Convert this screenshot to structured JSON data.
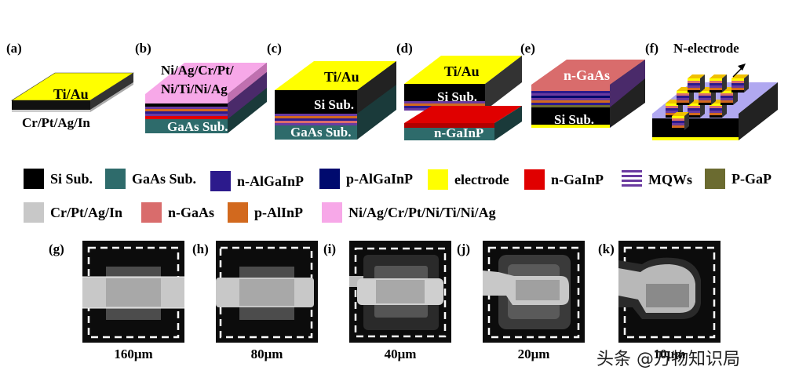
{
  "panels": {
    "a": {
      "label": "(a)",
      "top_text": "Ti/Au",
      "bottom_text": "Cr/Pt/Ag/In"
    },
    "b": {
      "label": "(b)",
      "top_line1": "Ni/Ag/Cr/Pt/",
      "top_line2": "Ni/Ti/Ni/Ag",
      "bottom_text": "GaAs Sub."
    },
    "c": {
      "label": "(c)",
      "top_text": "Ti/Au",
      "mid_text": "Si Sub.",
      "bottom_text": "GaAs Sub."
    },
    "d": {
      "label": "(d)",
      "top_text": "Ti/Au",
      "mid_text": "Si Sub.",
      "bottom_text": "n-GaInP"
    },
    "e": {
      "label": "(e)",
      "top_text": "n-GaAs",
      "bottom_text": "Si Sub."
    },
    "f": {
      "label": "(f)",
      "callout": "N-electrode"
    }
  },
  "legend": [
    {
      "label": "Si Sub.",
      "color": "#000000"
    },
    {
      "label": "GaAs Sub.",
      "color": "#2e6b6b"
    },
    {
      "label": "n-AlGaInP",
      "color": "#2c1a8c"
    },
    {
      "label": "p-AlGaInP",
      "color": "#000a6e"
    },
    {
      "label": "electrode",
      "color": "#ffff00"
    },
    {
      "label": "n-GaInP",
      "color": "#e00000"
    },
    {
      "label": "MQWs",
      "color": "#6a3aa0"
    },
    {
      "label": "P-GaP",
      "color": "#6b6b30"
    },
    {
      "label": "Cr/Pt/Ag/In",
      "color": "#c8c8c8"
    },
    {
      "label": "n-GaAs",
      "color": "#d96c6c"
    },
    {
      "label": "p-AlInP",
      "color": "#d2691e"
    },
    {
      "label": "Ni/Ag/Cr/Pt/Ni/Ti/Ni/Ag",
      "color": "#f7a8e8"
    }
  ],
  "sem": [
    {
      "label": "(g)",
      "caption": "160μm"
    },
    {
      "label": "(h)",
      "caption": "80μm"
    },
    {
      "label": "(i)",
      "caption": "40μm"
    },
    {
      "label": "(j)",
      "caption": "20μm"
    },
    {
      "label": "(k)",
      "caption": "10μm"
    }
  ],
  "watermark": "头条 @万物知识局"
}
